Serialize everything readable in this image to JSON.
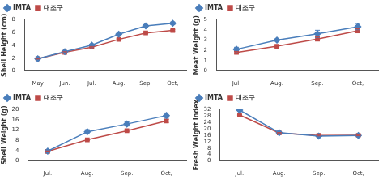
{
  "chart_data": [
    {
      "type": "line",
      "y_label": "Shell Height (cm)",
      "categories": [
        "May",
        "Jun.",
        "Jul.",
        "Aug.",
        "Sep.",
        "Oct,"
      ],
      "series": [
        {
          "name": "IMTA",
          "color": "#4a7ebb",
          "marker": "diamond",
          "values": [
            1.9,
            3.0,
            4.0,
            5.7,
            7.0,
            7.4
          ],
          "errors": [
            0.05,
            0.1,
            0.15,
            0.15,
            0.2,
            0.2
          ]
        },
        {
          "name": "대조구",
          "color": "#be4b48",
          "marker": "square",
          "values": [
            1.9,
            2.9,
            3.7,
            4.9,
            5.9,
            6.3
          ],
          "errors": [
            0.05,
            0.1,
            0.1,
            0.1,
            0.1,
            0.1
          ]
        }
      ],
      "ylim": [
        0,
        8
      ],
      "yticks": [
        0,
        2,
        4,
        6,
        8
      ],
      "grid": false,
      "legend": "top-left"
    },
    {
      "type": "line",
      "y_label": "Meat Weight (g)",
      "categories": [
        "Jul.",
        "Aug.",
        "Sep.",
        "Oct,"
      ],
      "series": [
        {
          "name": "IMTA",
          "color": "#4a7ebb",
          "marker": "diamond",
          "values": [
            2.1,
            3.0,
            3.6,
            4.3
          ],
          "errors": [
            0.2,
            0.1,
            0.35,
            0.3
          ]
        },
        {
          "name": "대조구",
          "color": "#be4b48",
          "marker": "square",
          "values": [
            1.8,
            2.4,
            3.1,
            3.9
          ],
          "errors": [
            0.1,
            0.1,
            0.2,
            0.2
          ]
        }
      ],
      "ylim": [
        0,
        5
      ],
      "yticks": [
        0,
        1,
        2,
        3,
        4,
        5
      ],
      "grid": false,
      "legend": "top-left"
    },
    {
      "type": "line",
      "y_label": "Shell Weight (g)",
      "categories": [
        "Jul.",
        "Aug.",
        "Sep.",
        "Oct,"
      ],
      "series": [
        {
          "name": "IMTA",
          "color": "#4a7ebb",
          "marker": "diamond",
          "values": [
            3.8,
            11.3,
            14.3,
            17.6
          ],
          "errors": [
            0.3,
            0.8,
            0.8,
            1.0
          ]
        },
        {
          "name": "대조구",
          "color": "#be4b48",
          "marker": "square",
          "values": [
            3.7,
            8.2,
            11.7,
            15.5
          ],
          "errors": [
            0.2,
            0.3,
            0.4,
            0.6
          ]
        }
      ],
      "ylim": [
        0,
        20
      ],
      "yticks": [
        0,
        4,
        8,
        12,
        16,
        20
      ],
      "grid": false,
      "legend": "top-left"
    },
    {
      "type": "line",
      "y_label": "Fresh Weight Index",
      "categories": [
        "Jul.",
        "Aug.",
        "Sep.",
        "Oct,"
      ],
      "series": [
        {
          "name": "IMTA",
          "color": "#4a7ebb",
          "marker": "diamond",
          "values": [
            31.5,
            17.5,
            15.4,
            15.8
          ],
          "errors": [
            0.4,
            0.3,
            0.3,
            0.3
          ]
        },
        {
          "name": "대조구",
          "color": "#be4b48",
          "marker": "square",
          "values": [
            28.5,
            17.3,
            15.8,
            15.9
          ],
          "errors": [
            0.3,
            0.3,
            0.3,
            0.3
          ]
        }
      ],
      "ylim": [
        0,
        32
      ],
      "yticks": [
        0,
        4,
        8,
        12,
        16,
        20,
        24,
        28,
        32
      ],
      "grid": false,
      "legend": "top-left"
    }
  ]
}
